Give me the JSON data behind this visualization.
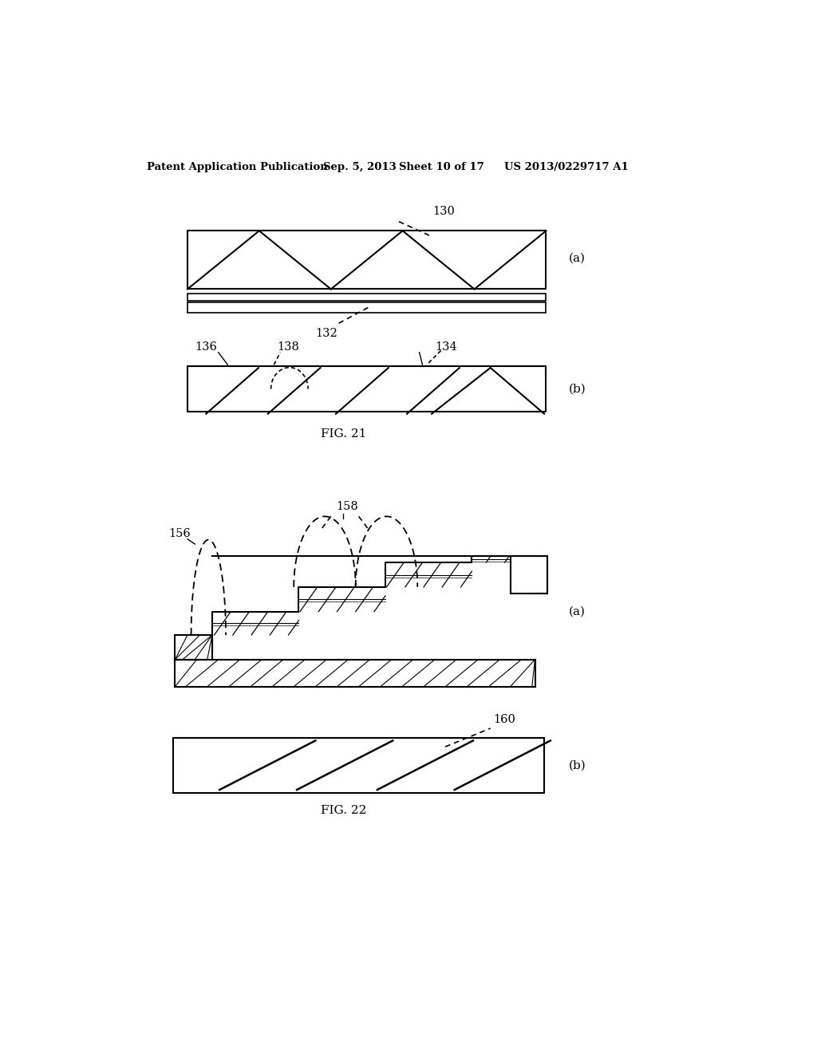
{
  "bg_color": "#ffffff",
  "header_text": "Patent Application Publication",
  "header_date": "Sep. 5, 2013",
  "header_sheet": "Sheet 10 of 17",
  "header_patent": "US 2013/0229717 A1",
  "fig21_label": "FIG. 21",
  "fig22_label": "FIG. 22"
}
